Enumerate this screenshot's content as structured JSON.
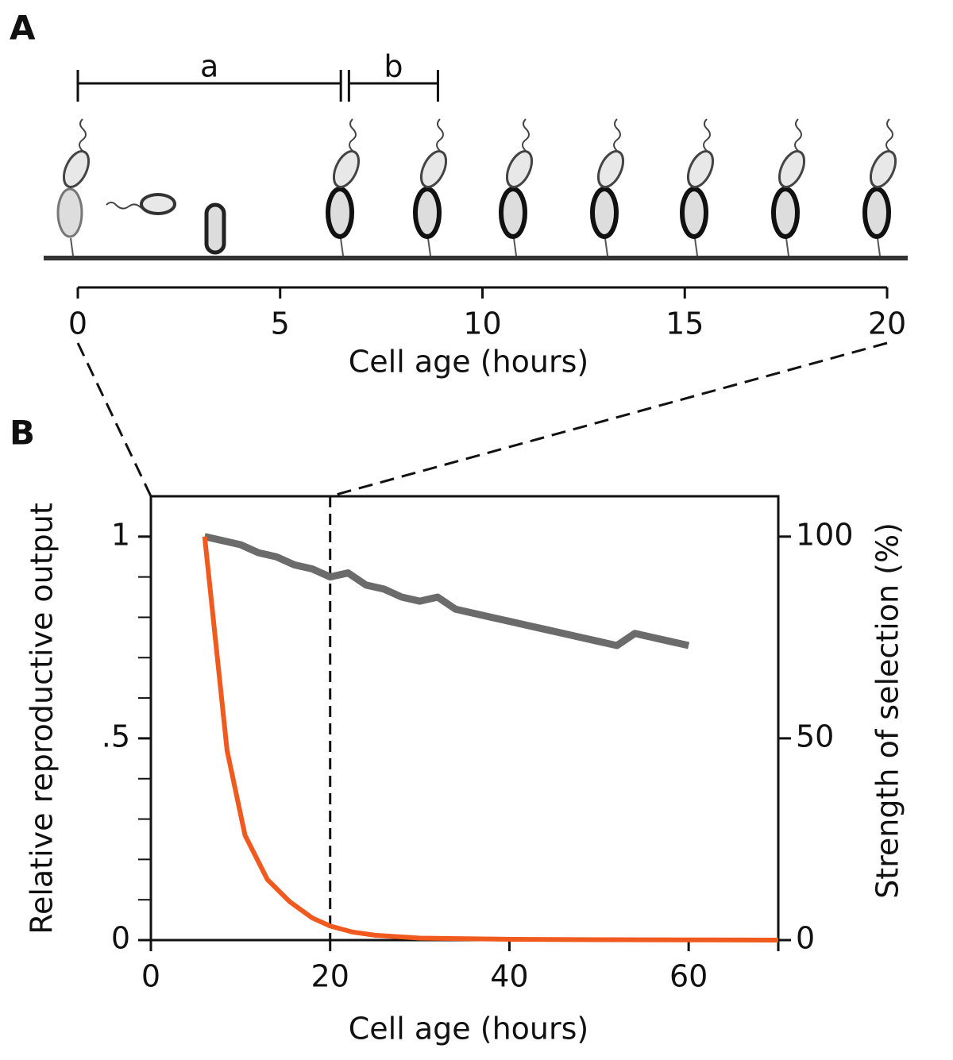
{
  "panel_a": {
    "label": "A",
    "brackets": [
      {
        "label": "a",
        "range": [
          0,
          6.5
        ]
      },
      {
        "label": "b",
        "range": [
          6.7,
          8.9
        ]
      }
    ],
    "xlim": [
      0,
      20
    ],
    "xticks": [
      0,
      5,
      10,
      15,
      20
    ],
    "xlabel": "Cell age (hours)"
  },
  "chart_data": {
    "type": "line",
    "panel_label": "B",
    "xlabel": "Cell age (hours)",
    "ylabel": "Relative reproductive output",
    "y2label": "Strength of selection (%)",
    "xlim": [
      0,
      70
    ],
    "xticks": [
      0,
      20,
      40,
      60,
      70
    ],
    "ylim": [
      0,
      1.1
    ],
    "yticks": [
      0,
      {
        "value": 0.5,
        "label": ".5"
      },
      1
    ],
    "yminorticks": [
      0.1,
      0.2,
      0.3,
      0.4,
      0.6,
      0.7,
      0.8,
      0.9
    ],
    "y2lim": [
      0,
      110
    ],
    "y2ticks": [
      0,
      50,
      100
    ],
    "highlight_x": [
      0,
      20
    ],
    "series": [
      {
        "color": "#6b6b6b",
        "axis": "y",
        "x": [
          6,
          8,
          10,
          12,
          14,
          16,
          18,
          20,
          22,
          24,
          26,
          28,
          30,
          32,
          34,
          36,
          38,
          40,
          42,
          44,
          46,
          48,
          50,
          52,
          54,
          56,
          58,
          60
        ],
        "values": [
          1.0,
          0.99,
          0.98,
          0.96,
          0.95,
          0.93,
          0.92,
          0.9,
          0.91,
          0.88,
          0.87,
          0.85,
          0.84,
          0.85,
          0.82,
          0.81,
          0.8,
          0.79,
          0.78,
          0.77,
          0.76,
          0.75,
          0.74,
          0.73,
          0.76,
          0.75,
          0.74,
          0.73
        ]
      },
      {
        "color": "#f05a1e",
        "axis": "y2",
        "x": [
          6,
          8.5,
          10.5,
          13,
          15.5,
          18,
          20,
          22.5,
          25,
          30,
          40,
          50,
          60,
          70
        ],
        "values": [
          100,
          47,
          26,
          15,
          9.5,
          5.5,
          3.5,
          2,
          1.2,
          0.5,
          0.2,
          0.1,
          0.05,
          0
        ]
      }
    ]
  }
}
